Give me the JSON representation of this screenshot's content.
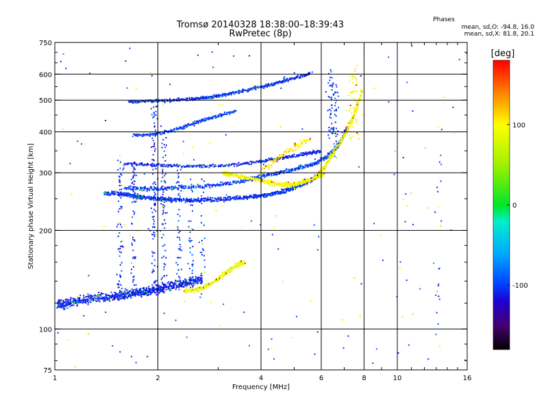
{
  "chart_data": {
    "type": "scatter",
    "title": "Tromsø 20140328 18:38:00–18:39:43",
    "subtitle": "RwPretec (8p)",
    "xlabel": "Frequency [MHz]",
    "ylabel": "Stationary phase Virtual Height [km]",
    "x_scale": "log",
    "y_scale": "log",
    "xlim": [
      1,
      16
    ],
    "ylim": [
      75,
      750
    ],
    "x_ticks": [
      1,
      2,
      4,
      6,
      8,
      10,
      16
    ],
    "x_tick_labels": [
      "1",
      "2",
      "4",
      "6",
      "8",
      "10",
      "16"
    ],
    "x_minor_ticks": [
      3,
      5,
      7,
      9,
      11,
      12,
      13,
      14,
      15
    ],
    "y_ticks": [
      75,
      100,
      200,
      300,
      400,
      500,
      600,
      750
    ],
    "y_tick_labels": [
      "75",
      "100",
      "200",
      "300",
      "400",
      "500",
      "600",
      "750"
    ],
    "x_gridlines": [
      2,
      4,
      6,
      8,
      10
    ],
    "y_gridlines": [
      100,
      200,
      300,
      400,
      500,
      600
    ],
    "grid": true,
    "stats": {
      "heading": "Phases",
      "line1": "mean, sd,O:  -94.8, 16.0",
      "line2": "mean, sd,X:  81.8, 20.1"
    },
    "colorbar": {
      "label": "[deg]",
      "range": [
        -180,
        180
      ],
      "ticks": [
        100,
        0,
        -100
      ],
      "tick_labels": [
        "100",
        "0",
        "-100"
      ],
      "placement": "right"
    },
    "traces": [
      {
        "f": [
          1.02,
          1.06,
          1.12,
          1.2,
          1.3,
          1.4,
          1.5,
          1.58,
          1.66,
          1.74,
          1.82,
          1.9,
          2.0,
          2.1,
          2.25,
          2.4,
          2.55,
          2.7
        ],
        "h": [
          120,
          119,
          121,
          123,
          124,
          125,
          126,
          127,
          128,
          129,
          130,
          131,
          132,
          134,
          136,
          138,
          140,
          142
        ],
        "phase": -110,
        "spread": 0.04,
        "n": 5
      },
      {
        "f": [
          1.4,
          1.6,
          1.7,
          1.8,
          2.0,
          2.2,
          2.5,
          2.8,
          3.2,
          3.6,
          4.0,
          4.4,
          4.8,
          5.2,
          5.6,
          5.9
        ],
        "h": [
          260,
          258,
          255,
          252,
          250,
          248,
          247,
          248,
          250,
          252,
          255,
          260,
          266,
          275,
          285,
          295
        ],
        "phase": -105,
        "spread": 0.018,
        "n": 6
      },
      {
        "f": [
          1.6,
          1.8,
          2.0,
          2.3,
          2.7,
          3.1,
          3.5,
          3.9,
          4.3,
          4.8,
          5.3,
          5.8,
          6.2,
          6.6,
          6.9,
          7.1
        ],
        "h": [
          270,
          268,
          268,
          270,
          273,
          277,
          282,
          290,
          297,
          304,
          312,
          322,
          335,
          355,
          380,
          410
        ],
        "phase": -100,
        "spread": 0.018,
        "n": 4
      },
      {
        "f": [
          1.6,
          1.8,
          2.0,
          2.2,
          2.5,
          2.8,
          3.2,
          3.6,
          4.0,
          4.4,
          4.8,
          5.2,
          5.6,
          6.0
        ],
        "h": [
          320,
          318,
          316,
          315,
          314,
          314,
          316,
          320,
          325,
          330,
          335,
          340,
          345,
          350
        ],
        "phase": -108,
        "spread": 0.014,
        "n": 3
      },
      {
        "f": [
          1.65,
          1.8,
          1.95,
          2.1,
          2.3,
          2.5,
          2.7,
          2.9,
          3.1,
          3.3,
          3.6,
          3.9,
          4.2,
          4.5,
          4.8,
          5.2,
          5.6
        ],
        "h": [
          495,
          495,
          497,
          498,
          500,
          503,
          507,
          512,
          518,
          525,
          535,
          545,
          555,
          566,
          578,
          590,
          605
        ],
        "phase": -105,
        "spread": 0.014,
        "n": 3
      },
      {
        "f": [
          1.7,
          1.9,
          2.1,
          2.3,
          2.5,
          2.7,
          2.9,
          3.1,
          3.4
        ],
        "h": [
          390,
          392,
          398,
          410,
          422,
          433,
          443,
          453,
          462
        ],
        "phase": -100,
        "spread": 0.015,
        "n": 3
      },
      {
        "f": [
          3.1,
          3.3,
          3.6,
          3.9,
          4.2,
          4.5,
          4.8,
          5.1,
          5.4,
          5.8,
          6.1
        ],
        "h": [
          300,
          295,
          290,
          286,
          280,
          276,
          275,
          277,
          282,
          290,
          298
        ],
        "phase": 95,
        "spread": 0.02,
        "n": 4
      },
      {
        "f": [
          5.9,
          6.1,
          6.3,
          6.5,
          6.8,
          7.1,
          7.4,
          7.7,
          7.9
        ],
        "h": [
          300,
          310,
          325,
          345,
          370,
          400,
          440,
          490,
          540
        ],
        "phase": 92,
        "spread": 0.02,
        "n": 3
      },
      {
        "f": [
          2.4,
          2.6,
          2.8,
          3.0,
          3.2,
          3.4,
          3.6
        ],
        "h": [
          130,
          132,
          136,
          142,
          150,
          156,
          160
        ],
        "phase": 88,
        "spread": 0.025,
        "n": 4
      },
      {
        "f": [
          4.0,
          4.3,
          4.6,
          5.0,
          5.3,
          5.6
        ],
        "h": [
          300,
          320,
          340,
          360,
          370,
          380
        ],
        "phase": 105,
        "spread": 0.03,
        "n": 2
      }
    ],
    "columns": [
      {
        "f": 1.55,
        "h_min": 130,
        "h_max": 330,
        "phase": -105,
        "n": 70
      },
      {
        "f": 1.7,
        "h_min": 125,
        "h_max": 320,
        "phase": -105,
        "n": 60
      },
      {
        "f": 1.95,
        "h_min": 125,
        "h_max": 480,
        "phase": -105,
        "n": 90
      },
      {
        "f": 2.08,
        "h_min": 130,
        "h_max": 420,
        "phase": -110,
        "n": 70
      },
      {
        "f": 2.3,
        "h_min": 140,
        "h_max": 320,
        "phase": -105,
        "n": 45
      },
      {
        "f": 2.5,
        "h_min": 140,
        "h_max": 300,
        "phase": -100,
        "n": 35
      },
      {
        "f": 2.7,
        "h_min": 140,
        "h_max": 290,
        "phase": -100,
        "n": 25
      },
      {
        "f": 6.4,
        "h_min": 380,
        "h_max": 620,
        "phase": -105,
        "n": 45
      },
      {
        "f": 6.6,
        "h_min": 330,
        "h_max": 560,
        "phase": -100,
        "n": 35
      },
      {
        "f": 7.3,
        "h_min": 380,
        "h_max": 600,
        "phase": 92,
        "n": 25
      },
      {
        "f": 7.55,
        "h_min": 380,
        "h_max": 640,
        "phase": 95,
        "n": 30
      },
      {
        "f": 13.3,
        "h_min": 100,
        "h_max": 560,
        "phase": -100,
        "n": 18
      }
    ],
    "scatter_density": 180
  }
}
